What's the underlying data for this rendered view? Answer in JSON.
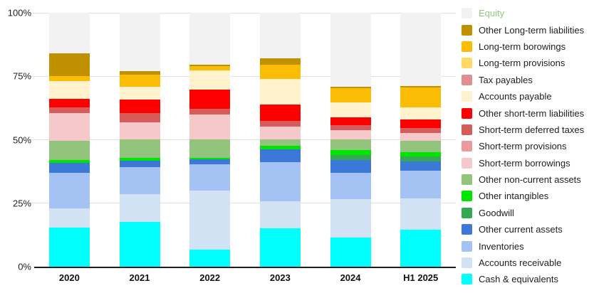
{
  "chart_data": {
    "type": "bar",
    "variant": "stacked-percent",
    "title": "",
    "xlabel": "",
    "ylabel": "",
    "ylim": [
      0,
      100
    ],
    "grid": true,
    "legend_position": "right",
    "y_ticks": [
      {
        "label": "100%",
        "value": 100
      },
      {
        "label": "75%",
        "value": 75
      },
      {
        "label": "50%",
        "value": 50
      },
      {
        "label": "25%",
        "value": 25
      },
      {
        "label": "0%",
        "value": 0
      }
    ],
    "categories": [
      "2020",
      "2021",
      "2022",
      "2023",
      "2024",
      "H1 2025"
    ],
    "series": [
      {
        "name": "Equity",
        "color": "#f2f2f2",
        "label_color": "#8ec87e",
        "values": [
          16.0,
          23.0,
          20.5,
          17.8,
          29.1,
          28.8
        ]
      },
      {
        "name": "Other Long-term liabilities",
        "color": "#bf9000",
        "values": [
          9.0,
          1.4,
          0.6,
          2.6,
          0.7,
          0.6
        ]
      },
      {
        "name": "Long-term borowings",
        "color": "#fbbc04",
        "values": [
          2.0,
          4.8,
          1.7,
          5.6,
          5.4,
          7.9
        ]
      },
      {
        "name": "Long-term provisions",
        "color": "#ffd966",
        "values": [
          0,
          0,
          0,
          0,
          0,
          0
        ]
      },
      {
        "name": "Tax payables",
        "color": "#df8f8f",
        "values": [
          0,
          0,
          0,
          0,
          0,
          0
        ]
      },
      {
        "name": "Accounts payable",
        "color": "#fff2cc",
        "values": [
          6.8,
          5.1,
          7.4,
          10.2,
          5.9,
          4.8
        ]
      },
      {
        "name": "Other short-term liabilities",
        "color": "#ff0000",
        "values": [
          3.4,
          5.2,
          7.7,
          6.3,
          3.0,
          3.2
        ]
      },
      {
        "name": "Short-term deferred taxes",
        "color": "#d65c5c",
        "values": [
          2.3,
          3.5,
          2.2,
          2.3,
          2.1,
          1.9
        ]
      },
      {
        "name": "Short-term provisions",
        "color": "#ea9a9a",
        "values": [
          0,
          0,
          0,
          0,
          0,
          0
        ]
      },
      {
        "name": "Short-term borrowings",
        "color": "#f5c9ca",
        "values": [
          11.0,
          6.9,
          9.8,
          5.1,
          3.7,
          3.2
        ]
      },
      {
        "name": "Other non-current assets",
        "color": "#93c47d",
        "values": [
          7.5,
          7.2,
          7.2,
          2.5,
          4.1,
          4.6
        ]
      },
      {
        "name": "Other intangibles",
        "color": "#00e500",
        "values": [
          1.2,
          1.2,
          0.7,
          1.3,
          1.9,
          1.6
        ]
      },
      {
        "name": "Goodwill",
        "color": "#34a853",
        "values": [
          0,
          0,
          0,
          0,
          2.1,
          1.9
        ]
      },
      {
        "name": "Other current assets",
        "color": "#3c78d8",
        "values": [
          3.9,
          2.5,
          1.8,
          5.0,
          5.1,
          3.7
        ]
      },
      {
        "name": "Inventories",
        "color": "#a4c2f4",
        "values": [
          14.0,
          10.5,
          10.5,
          15.6,
          10.3,
          11.0
        ]
      },
      {
        "name": "Accounts receivable",
        "color": "#d0e2f3",
        "values": [
          7.4,
          11.0,
          23.1,
          10.7,
          15.1,
          12.3
        ]
      },
      {
        "name": "Cash & equivalents",
        "color": "#00ffff",
        "values": [
          15.5,
          17.7,
          6.8,
          15.0,
          11.5,
          14.5
        ]
      }
    ]
  },
  "colors": {
    "background": "#ffffff",
    "gridline": "#e2e2e2",
    "axis_line": "#1a1a1a",
    "tick_label": "#1f1f1f",
    "legend_label": "#212121"
  }
}
